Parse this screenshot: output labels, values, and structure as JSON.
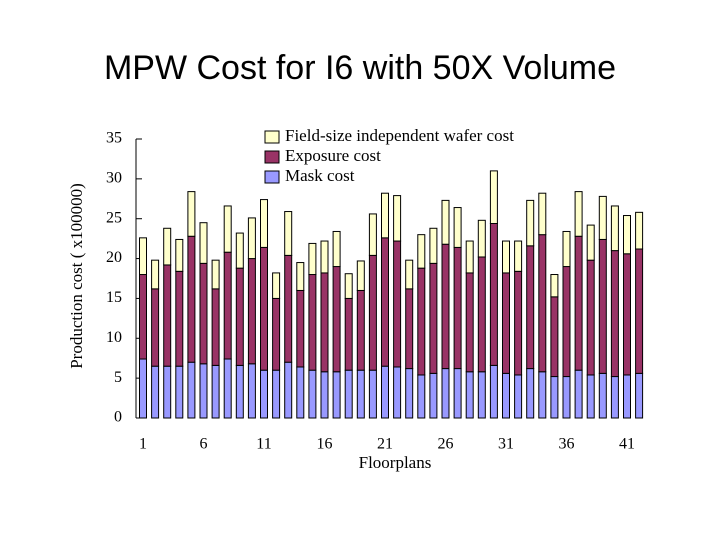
{
  "chart_data": {
    "type": "stacked_bar",
    "title": "MPW Cost for I6 with 50X Volume",
    "xlabel": "Floorplans",
    "ylabel": "Production cost ( x100000)",
    "categories": [
      1,
      null,
      null,
      null,
      null,
      6,
      null,
      null,
      null,
      null,
      11,
      null,
      null,
      null,
      null,
      16,
      null,
      null,
      null,
      null,
      21,
      null,
      null,
      null,
      null,
      26,
      null,
      null,
      null,
      null,
      31,
      null,
      null,
      null,
      null,
      36,
      null,
      null,
      null,
      null,
      41,
      null
    ],
    "series": [
      {
        "name": "Mask cost",
        "color": "#9999ff",
        "values": [
          7.4,
          6.5,
          6.5,
          6.5,
          7.0,
          6.8,
          6.6,
          7.4,
          6.6,
          6.8,
          6.0,
          6.0,
          7.0,
          6.4,
          6.0,
          5.8,
          5.8,
          6.0,
          6.0,
          6.0,
          6.5,
          6.4,
          6.2,
          5.4,
          5.6,
          6.2,
          6.2,
          5.8,
          5.8,
          6.6,
          5.6,
          5.4,
          6.2,
          5.8,
          5.2,
          5.2,
          6.0,
          5.4,
          5.6,
          5.2,
          5.4,
          5.6
        ]
      },
      {
        "name": "Exposure cost",
        "color": "#993366",
        "values": [
          10.6,
          9.7,
          12.7,
          11.9,
          15.8,
          12.6,
          9.6,
          13.4,
          12.2,
          13.2,
          15.4,
          9.0,
          13.4,
          9.6,
          12.0,
          12.4,
          13.2,
          9.0,
          10.0,
          14.4,
          16.1,
          15.8,
          10.0,
          13.4,
          13.8,
          15.6,
          15.2,
          12.4,
          14.4,
          17.8,
          12.6,
          13.0,
          15.4,
          17.2,
          10.0,
          13.8,
          16.8,
          14.4,
          16.8,
          15.8,
          15.2,
          15.6
        ]
      },
      {
        "name": "Field-size independent wafer cost",
        "color": "#ffffcc",
        "values": [
          4.6,
          3.6,
          4.6,
          4.0,
          5.6,
          5.1,
          3.6,
          5.8,
          4.4,
          5.1,
          6.0,
          3.2,
          5.5,
          3.5,
          3.9,
          4.0,
          4.4,
          3.1,
          3.7,
          5.2,
          5.6,
          5.7,
          3.6,
          4.2,
          4.4,
          5.5,
          5.0,
          4.0,
          4.6,
          6.6,
          4.0,
          3.8,
          5.7,
          5.2,
          2.8,
          4.4,
          5.6,
          4.4,
          5.4,
          5.6,
          4.8,
          4.6
        ]
      }
    ],
    "ylim": [
      0,
      35
    ],
    "yticks": [
      0,
      5,
      10,
      15,
      20,
      25,
      30,
      35
    ]
  }
}
